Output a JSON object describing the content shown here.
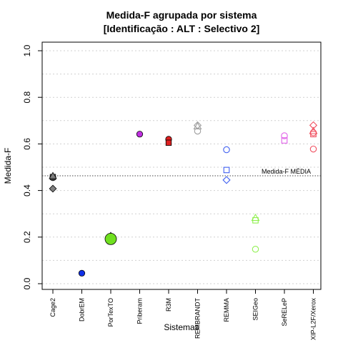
{
  "chart_data": {
    "type": "scatter",
    "title": "Medida-F agrupada por sistema",
    "subtitle": "[Identificação : ALT : Selectivo 2]",
    "xlabel": "Sistemas",
    "ylabel": "Medida-F",
    "ylim": [
      0,
      1
    ],
    "yticks": [
      "0.0",
      "0.2",
      "0.4",
      "0.6",
      "0.8",
      "1.0"
    ],
    "grid": "horizontal dotted",
    "categories": [
      "Cage2",
      "DobrEM",
      "PorTexTO",
      "Priberam",
      "R3M",
      "REMBRANDT",
      "REMMA",
      "SEIGeo",
      "SeRELeP",
      "XIP-L2F/Xerox"
    ],
    "reference_line": {
      "label": "Medida-F MÉDIA",
      "value": 0.463
    },
    "points": [
      {
        "category": "Cage2",
        "y": 0.455,
        "shape": "circle",
        "filled": true,
        "color": "#808080"
      },
      {
        "category": "Cage2",
        "y": 0.458,
        "shape": "square",
        "filled": true,
        "color": "#808080"
      },
      {
        "category": "Cage2",
        "y": 0.462,
        "shape": "triangle",
        "filled": true,
        "color": "#808080"
      },
      {
        "category": "Cage2",
        "y": 0.408,
        "shape": "diamond",
        "filled": true,
        "color": "#808080"
      },
      {
        "category": "DobrEM",
        "y": 0.045,
        "shape": "circle",
        "filled": true,
        "color": "#1030e8"
      },
      {
        "category": "PorTexTO",
        "y": 0.205,
        "shape": "triangle",
        "filled": true,
        "color": "#70e020"
      },
      {
        "category": "PorTexTO",
        "y": 0.198,
        "shape": "square",
        "filled": true,
        "color": "#70e020"
      },
      {
        "category": "PorTexTO",
        "y": 0.192,
        "shape": "circle",
        "filled": true,
        "color": "#70e020",
        "large": true
      },
      {
        "category": "Priberam",
        "y": 0.642,
        "shape": "circle",
        "filled": true,
        "color": "#c030e0"
      },
      {
        "category": "R3M",
        "y": 0.62,
        "shape": "circle",
        "filled": true,
        "color": "#e02020"
      },
      {
        "category": "R3M",
        "y": 0.605,
        "shape": "square",
        "filled": true,
        "color": "#e02020"
      },
      {
        "category": "REMBRANDT",
        "y": 0.68,
        "shape": "diamond",
        "filled": false,
        "color": "#a0a0a0"
      },
      {
        "category": "REMBRANDT",
        "y": 0.675,
        "shape": "triangle",
        "filled": false,
        "color": "#a0a0a0"
      },
      {
        "category": "REMBRANDT",
        "y": 0.655,
        "shape": "circle",
        "filled": false,
        "color": "#a0a0a0"
      },
      {
        "category": "REMMA",
        "y": 0.575,
        "shape": "circle",
        "filled": false,
        "color": "#4060f0"
      },
      {
        "category": "REMMA",
        "y": 0.488,
        "shape": "square",
        "filled": false,
        "color": "#4060f0"
      },
      {
        "category": "REMMA",
        "y": 0.445,
        "shape": "diamond",
        "filled": false,
        "color": "#4060f0"
      },
      {
        "category": "SEIGeo",
        "y": 0.282,
        "shape": "triangle",
        "filled": false,
        "color": "#90f050"
      },
      {
        "category": "SEIGeo",
        "y": 0.272,
        "shape": "square",
        "filled": false,
        "color": "#90f050"
      },
      {
        "category": "SEIGeo",
        "y": 0.148,
        "shape": "circle",
        "filled": false,
        "color": "#90f050"
      },
      {
        "category": "SeRELeP",
        "y": 0.635,
        "shape": "circle",
        "filled": false,
        "color": "#e060e8"
      },
      {
        "category": "SeRELeP",
        "y": 0.615,
        "shape": "square",
        "filled": false,
        "color": "#e060e8"
      },
      {
        "category": "XIP-L2F/Xerox",
        "y": 0.68,
        "shape": "diamond",
        "filled": false,
        "color": "#f05060"
      },
      {
        "category": "XIP-L2F/Xerox",
        "y": 0.655,
        "shape": "triangle",
        "filled": false,
        "color": "#f05060"
      },
      {
        "category": "XIP-L2F/Xerox",
        "y": 0.648,
        "shape": "circle",
        "filled": false,
        "color": "#f05060"
      },
      {
        "category": "XIP-L2F/Xerox",
        "y": 0.642,
        "shape": "square",
        "filled": false,
        "color": "#f05060"
      },
      {
        "category": "XIP-L2F/Xerox",
        "y": 0.578,
        "shape": "circle",
        "filled": false,
        "color": "#f05060"
      }
    ]
  }
}
